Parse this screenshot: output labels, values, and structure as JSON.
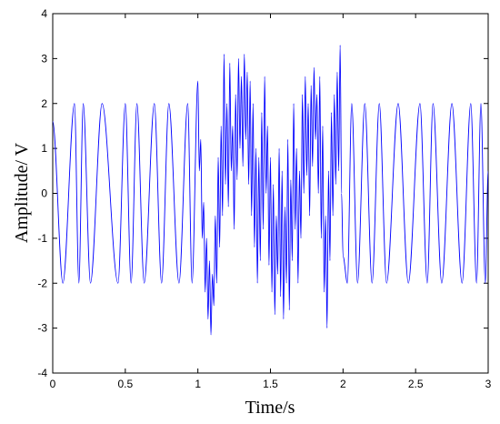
{
  "chart_data": {
    "type": "line",
    "xlabel": "Time/s",
    "ylabel": "Amplitude/ V",
    "color": "#0000ff",
    "xlim": [
      0,
      3
    ],
    "xticks": [
      0,
      0.5,
      1,
      1.5,
      2,
      2.5,
      3
    ],
    "ylim": [
      -4,
      4
    ],
    "yticks": [
      -4,
      -3,
      -2,
      -1,
      0,
      1,
      2,
      3,
      4
    ],
    "grid": false,
    "x": [
      0,
      0.07,
      0.15,
      0.18,
      0.21,
      0.26,
      0.34,
      0.45,
      0.5,
      0.54,
      0.58,
      0.63,
      0.7,
      0.75,
      0.8,
      0.87,
      0.93,
      0.96,
      1.0,
      1.01,
      1.02,
      1.03,
      1.04,
      1.05,
      1.06,
      1.07,
      1.08,
      1.09,
      1.1,
      1.11,
      1.12,
      1.13,
      1.14,
      1.15,
      1.16,
      1.17,
      1.18,
      1.19,
      1.2,
      1.21,
      1.22,
      1.23,
      1.24,
      1.25,
      1.26,
      1.27,
      1.28,
      1.29,
      1.3,
      1.31,
      1.32,
      1.33,
      1.34,
      1.35,
      1.36,
      1.37,
      1.38,
      1.39,
      1.4,
      1.41,
      1.42,
      1.43,
      1.44,
      1.45,
      1.46,
      1.47,
      1.48,
      1.49,
      1.5,
      1.51,
      1.52,
      1.53,
      1.54,
      1.55,
      1.56,
      1.57,
      1.58,
      1.59,
      1.6,
      1.61,
      1.62,
      1.63,
      1.64,
      1.65,
      1.66,
      1.67,
      1.68,
      1.69,
      1.7,
      1.71,
      1.72,
      1.73,
      1.74,
      1.75,
      1.76,
      1.77,
      1.78,
      1.79,
      1.8,
      1.81,
      1.82,
      1.83,
      1.84,
      1.85,
      1.86,
      1.87,
      1.88,
      1.89,
      1.9,
      1.91,
      1.92,
      1.93,
      1.94,
      1.95,
      1.96,
      1.97,
      1.98,
      1.99,
      2.0,
      2.03,
      2.06,
      2.1,
      2.15,
      2.2,
      2.25,
      2.3,
      2.38,
      2.45,
      2.53,
      2.58,
      2.62,
      2.68,
      2.75,
      2.82,
      2.88,
      2.92,
      2.95,
      2.98,
      3.0
    ],
    "values": [
      1.6,
      -2,
      2,
      -2,
      2,
      -2,
      2,
      -2,
      2,
      -2,
      2,
      -2,
      2,
      -2,
      2,
      -2,
      2,
      -2,
      2.5,
      0.5,
      1.2,
      -1.0,
      -0.2,
      -2.2,
      -1.0,
      -2.8,
      -1.5,
      -3.15,
      -1.8,
      -2.5,
      -0.5,
      -2.0,
      0.8,
      -1.2,
      1.5,
      -0.5,
      3.1,
      0.2,
      2.0,
      -0.3,
      2.9,
      0.5,
      1.5,
      -0.8,
      2.2,
      0.3,
      3.0,
      1.0,
      2.6,
      0.6,
      3.1,
      1.2,
      2.7,
      0.2,
      2.5,
      -0.5,
      2.0,
      -1.2,
      1.0,
      -2.0,
      0.8,
      -1.5,
      1.8,
      -0.8,
      2.6,
      0.0,
      1.5,
      -1.6,
      0.8,
      -2.2,
      0.2,
      -2.7,
      -0.5,
      -1.8,
      1.0,
      -2.3,
      0.5,
      -2.8,
      -0.3,
      -2.0,
      1.2,
      -2.6,
      0.3,
      -1.5,
      2.0,
      -0.8,
      1.0,
      -2.0,
      0.5,
      -1.0,
      2.2,
      0.0,
      2.6,
      0.4,
      2.0,
      -0.5,
      2.4,
      0.6,
      2.8,
      1.2,
      2.2,
      0.0,
      2.6,
      -1.0,
      1.5,
      -2.2,
      -0.5,
      -3.0,
      0.5,
      -1.5,
      1.8,
      -0.5,
      2.2,
      0.2,
      2.7,
      0.5,
      3.3,
      0.0,
      -1.4,
      -2,
      2,
      -2,
      2,
      -2,
      2,
      -2,
      2,
      -2,
      2,
      -2,
      2,
      -2,
      2,
      -2,
      2,
      -2,
      2,
      -2,
      0.5
    ]
  }
}
